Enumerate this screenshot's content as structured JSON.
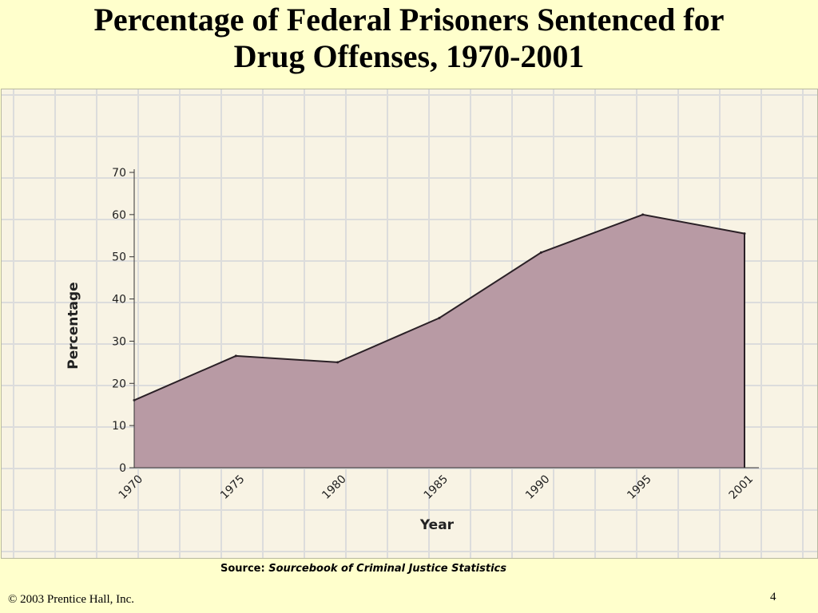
{
  "slide": {
    "title_line1": "Percentage of Federal Prisoners Sentenced for",
    "title_line2": "Drug Offenses, 1970-2001",
    "source_label": "Source:",
    "source_title": "Sourcebook of Criminal Justice Statistics",
    "copyright": "© 2003  Prentice Hall, Inc.",
    "page_number": "4"
  },
  "chart_data": {
    "type": "area",
    "x": [
      "1970",
      "1975",
      "1980",
      "1985",
      "1990",
      "1995",
      "2001"
    ],
    "y": [
      16,
      26.5,
      25,
      35.5,
      51,
      60,
      55.5
    ],
    "xlabel": "Year",
    "ylabel": "Percentage",
    "ylim": [
      0,
      70
    ],
    "yticks": [
      0,
      10,
      20,
      30,
      40,
      50,
      60,
      70
    ],
    "grid": true,
    "fill_color": "#b89aa4",
    "outline_color": "#2a2026"
  }
}
